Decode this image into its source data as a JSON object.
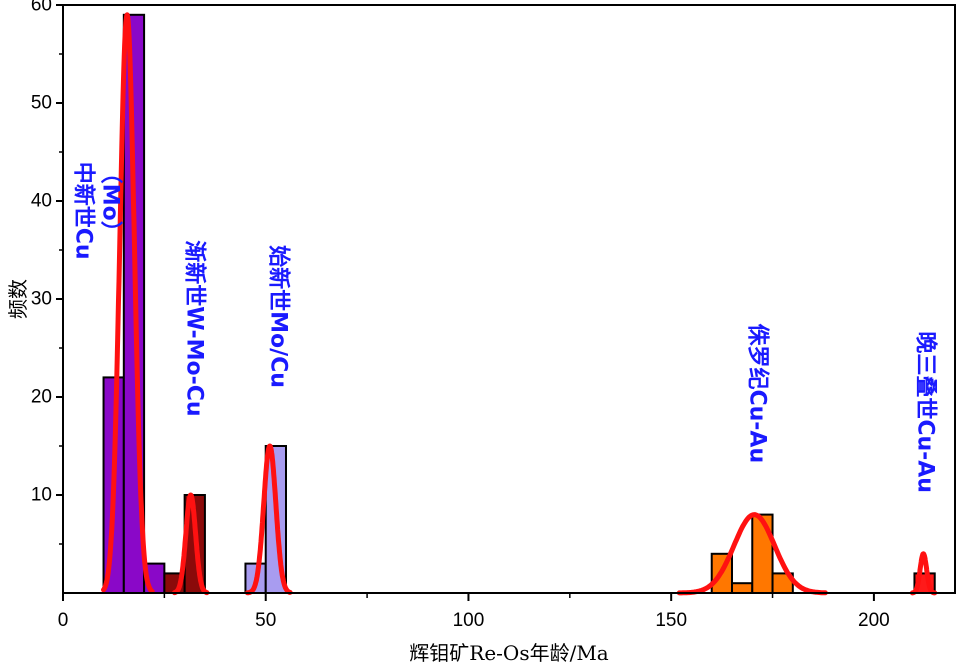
{
  "chart_data": {
    "type": "bar",
    "xlabel": "辉钼矿Re-Os年龄/Ma",
    "ylabel": "频数",
    "xlim": [
      0,
      220
    ],
    "ylim": [
      0,
      60
    ],
    "x_ticks": [
      "0",
      "50",
      "100",
      "150",
      "200"
    ],
    "y_ticks": [
      "10",
      "20",
      "30",
      "40",
      "50",
      "60"
    ],
    "grid": false,
    "bin_width": 5,
    "bars": [
      {
        "x0": 10,
        "x1": 15,
        "count": 22,
        "color": "#8a08c8"
      },
      {
        "x0": 15,
        "x1": 20,
        "count": 59,
        "color": "#8a08c8"
      },
      {
        "x0": 20,
        "x1": 25,
        "count": 3,
        "color": "#8a08c8"
      },
      {
        "x0": 25,
        "x1": 30,
        "count": 2,
        "color": "#8b0a0a"
      },
      {
        "x0": 30,
        "x1": 35,
        "count": 10,
        "color": "#8b0a0a"
      },
      {
        "x0": 45,
        "x1": 50,
        "count": 3,
        "color": "#a89cf0"
      },
      {
        "x0": 50,
        "x1": 55,
        "count": 15,
        "color": "#a89cf0"
      },
      {
        "x0": 160,
        "x1": 165,
        "count": 4,
        "color": "#ff7700"
      },
      {
        "x0": 165,
        "x1": 170,
        "count": 1,
        "color": "#ff7700"
      },
      {
        "x0": 170,
        "x1": 175,
        "count": 8,
        "color": "#ff7700"
      },
      {
        "x0": 175,
        "x1": 180,
        "count": 2,
        "color": "#ff7700"
      },
      {
        "x0": 210,
        "x1": 215,
        "count": 2,
        "color": "#ff1a1a"
      }
    ],
    "fit_curves": [
      {
        "mean": 15.8,
        "sd": 1.8,
        "peak": 59,
        "from": 10,
        "to": 22,
        "color": "#ff1111"
      },
      {
        "mean": 31.5,
        "sd": 1.2,
        "peak": 10,
        "from": 27.5,
        "to": 35.5,
        "color": "#ff1111"
      },
      {
        "mean": 51.0,
        "sd": 1.5,
        "peak": 15,
        "from": 45.5,
        "to": 56,
        "color": "#ff1111"
      },
      {
        "mean": 170.5,
        "sd": 5.0,
        "peak": 8,
        "from": 152,
        "to": 188,
        "color": "#ff1111"
      },
      {
        "mean": 212.2,
        "sd": 0.8,
        "peak": 4,
        "from": 209.5,
        "to": 215,
        "color": "#ff1111"
      }
    ],
    "annotations": [
      {
        "id": "mid-miocene",
        "lines": [
          "中新世Cu",
          "（Mo）"
        ],
        "x": 8.2,
        "y": 44
      },
      {
        "id": "oligocene",
        "lines": [
          "渐新世W-Mo-Cu"
        ],
        "x": 32.3,
        "y": 36
      },
      {
        "id": "eocene",
        "lines": [
          "始新世Mo/Cu"
        ],
        "x": 53.0,
        "y": 35.5
      },
      {
        "id": "jurassic",
        "lines": [
          "侏罗纪Cu-Au"
        ],
        "x": 171.2,
        "y": 27.5
      },
      {
        "id": "late-triassic",
        "lines": [
          "晚三叠世Cu-Au"
        ],
        "x": 212.6,
        "y": 26.7
      }
    ]
  }
}
